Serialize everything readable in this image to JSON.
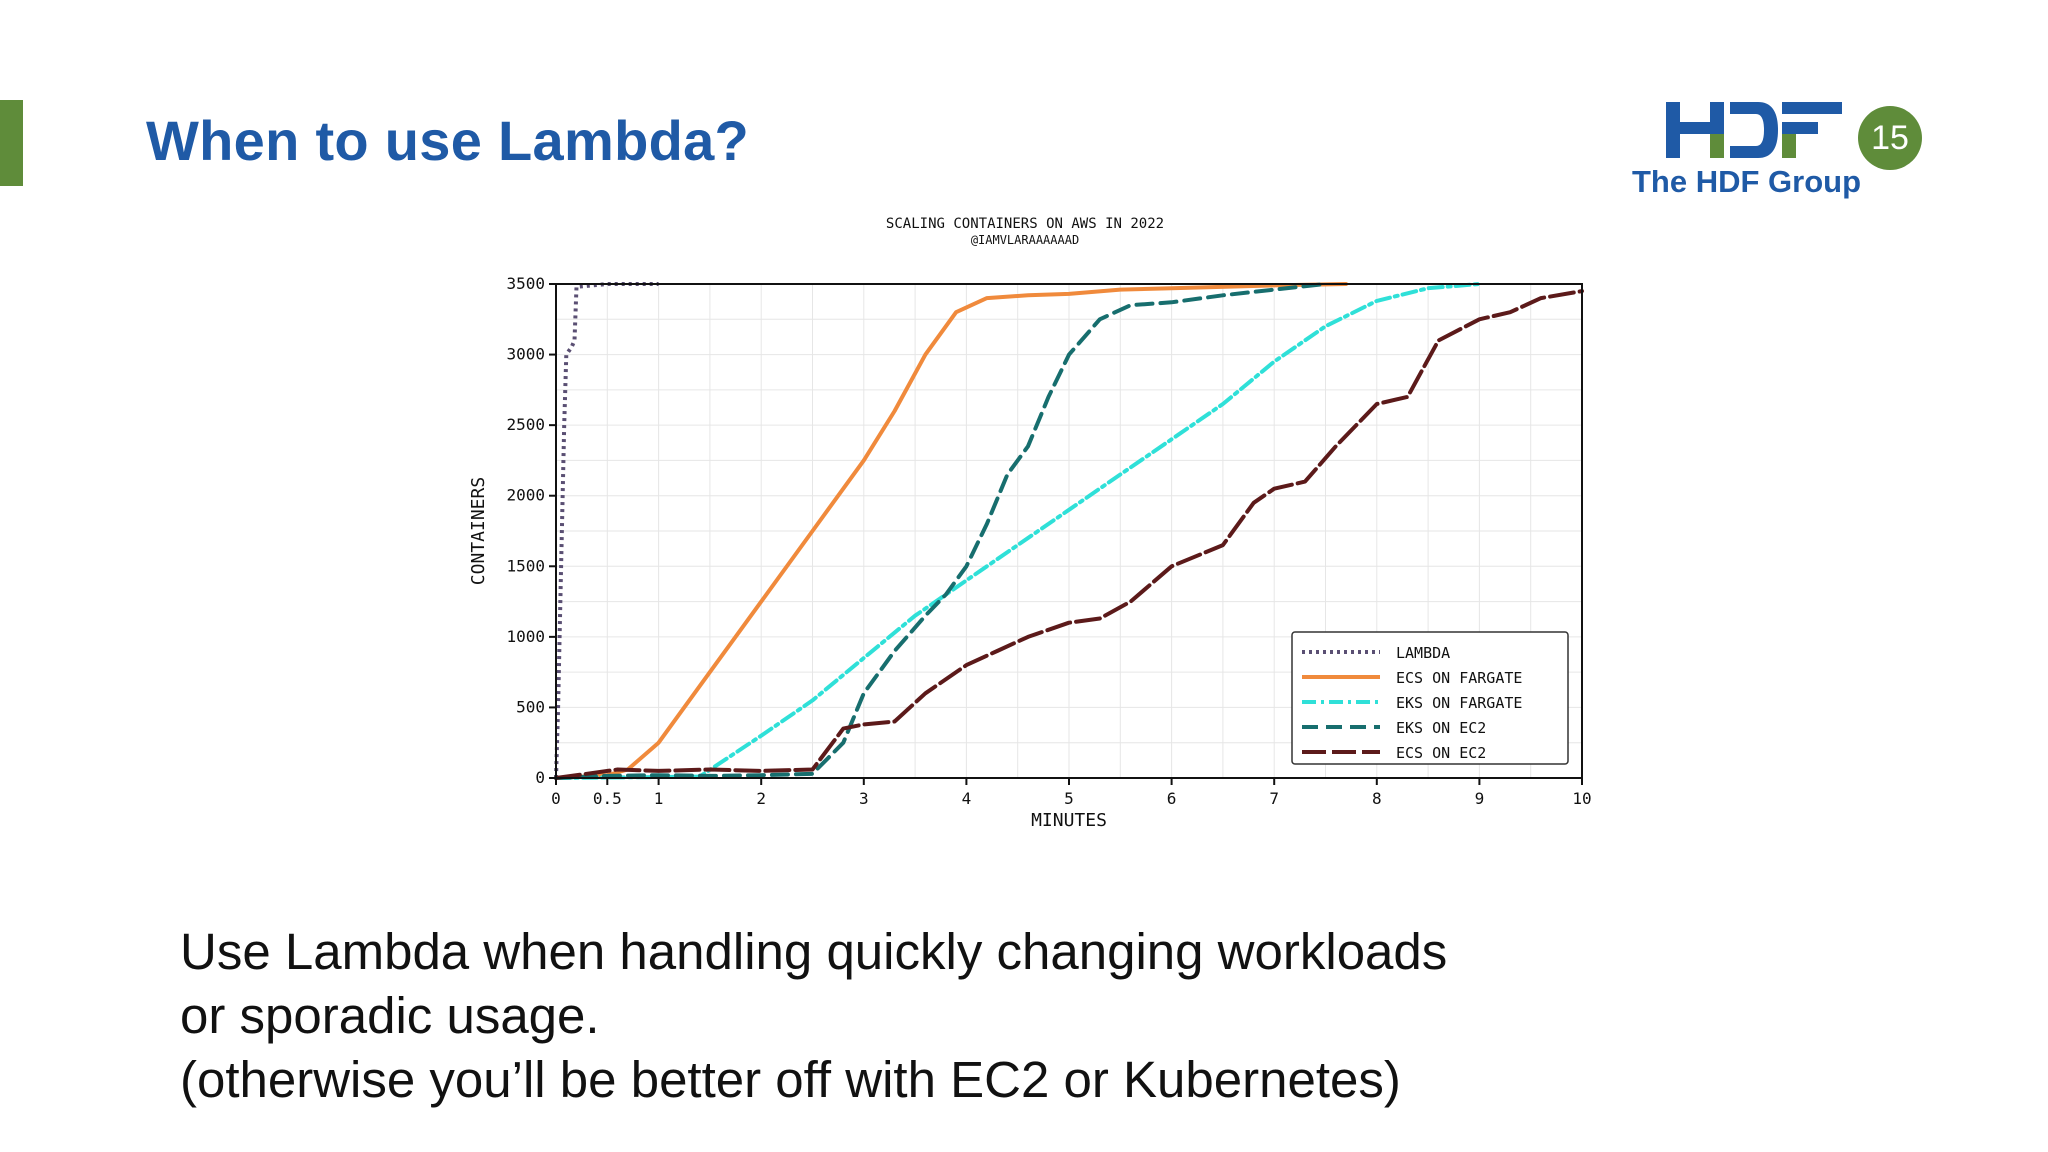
{
  "slide": {
    "title": "When to use Lambda?",
    "page_number": "15",
    "accent_color": "#5f8c3a",
    "title_color": "#1f5aa6"
  },
  "logo": {
    "text": "The HDF Group",
    "mark_text": "HDF",
    "colors": {
      "blue": "#1f5aa6",
      "green": "#5f8c3a"
    }
  },
  "body": {
    "lines": [
      "Use Lambda when handling quickly changing workloads",
      "or sporadic usage.",
      "(otherwise you’ll be better off with EC2 or Kubernetes)"
    ]
  },
  "chart_data": {
    "type": "line",
    "title": "SCALING CONTAINERS ON AWS IN 2022",
    "subtitle": "@IAMVLARAAAAAAD",
    "xlabel": "MINUTES",
    "ylabel": "CONTAINERS",
    "xlim": [
      0,
      10
    ],
    "ylim": [
      0,
      3500
    ],
    "xticks": [
      0,
      0.5,
      1,
      2,
      3,
      4,
      5,
      6,
      7,
      8,
      9,
      10
    ],
    "xtick_labels": [
      "0",
      "0.5",
      "1",
      "2",
      "3",
      "4",
      "5",
      "6",
      "7",
      "8",
      "9",
      "10"
    ],
    "yticks": [
      0,
      500,
      1000,
      1500,
      2000,
      2500,
      3000,
      3500
    ],
    "ytick_labels": [
      "0",
      "500",
      "1000",
      "1500",
      "2000",
      "2500",
      "3000",
      "3500"
    ],
    "grid": true,
    "legend_position": "bottom-right",
    "series": [
      {
        "name": "LAMBDA",
        "color": "#5a4f73",
        "dash": "dotted",
        "x": [
          0,
          0.02,
          0.05,
          0.08,
          0.1,
          0.12,
          0.15,
          0.18,
          0.2,
          0.5,
          1.0
        ],
        "y": [
          0,
          500,
          1500,
          2500,
          3000,
          3020,
          3050,
          3100,
          3480,
          3500,
          3500
        ]
      },
      {
        "name": "ECS ON FARGATE",
        "color": "#f08a3c",
        "dash": "solid",
        "x": [
          0,
          0.5,
          0.7,
          1.0,
          1.5,
          2.0,
          2.5,
          3.0,
          3.3,
          3.6,
          3.9,
          4.2,
          4.6,
          5.0,
          5.5,
          6.0,
          7.0,
          7.7
        ],
        "y": [
          0,
          20,
          60,
          250,
          750,
          1250,
          1750,
          2250,
          2600,
          3000,
          3300,
          3400,
          3420,
          3430,
          3460,
          3470,
          3490,
          3500
        ]
      },
      {
        "name": "EKS ON FARGATE",
        "color": "#2fe0d8",
        "dash": "dash-dot",
        "x": [
          0,
          1.4,
          2.0,
          2.5,
          3.0,
          3.5,
          4.0,
          4.5,
          5.0,
          5.5,
          6.0,
          6.5,
          7.0,
          7.5,
          8.0,
          8.5,
          9.0
        ],
        "y": [
          0,
          10,
          300,
          550,
          850,
          1150,
          1400,
          1650,
          1900,
          2150,
          2400,
          2650,
          2950,
          3200,
          3380,
          3470,
          3500
        ]
      },
      {
        "name": "EKS ON EC2",
        "color": "#176e6e",
        "dash": "dashed",
        "x": [
          0,
          0.5,
          1.0,
          1.5,
          2.0,
          2.5,
          2.8,
          3.0,
          3.3,
          3.6,
          3.8,
          4.0,
          4.2,
          4.4,
          4.6,
          4.8,
          5.0,
          5.3,
          5.6,
          6.0,
          6.5,
          7.0,
          7.5
        ],
        "y": [
          0,
          15,
          20,
          15,
          20,
          30,
          250,
          600,
          900,
          1150,
          1300,
          1500,
          1800,
          2150,
          2350,
          2700,
          3000,
          3250,
          3350,
          3370,
          3420,
          3460,
          3500
        ]
      },
      {
        "name": "ECS ON EC2",
        "color": "#5c1a1a",
        "dash": "long-dash",
        "x": [
          0,
          0.3,
          0.6,
          1.0,
          1.5,
          2.0,
          2.5,
          2.8,
          3.0,
          3.3,
          3.6,
          4.0,
          4.3,
          4.6,
          5.0,
          5.3,
          5.6,
          6.0,
          6.5,
          6.8,
          7.0,
          7.3,
          7.6,
          8.0,
          8.3,
          8.6,
          9.0,
          9.3,
          9.6,
          10.0
        ],
        "y": [
          0,
          30,
          60,
          50,
          60,
          50,
          60,
          350,
          380,
          400,
          600,
          800,
          900,
          1000,
          1100,
          1130,
          1250,
          1500,
          1650,
          1950,
          2050,
          2100,
          2350,
          2650,
          2700,
          3100,
          3250,
          3300,
          3400,
          3450
        ]
      }
    ]
  }
}
